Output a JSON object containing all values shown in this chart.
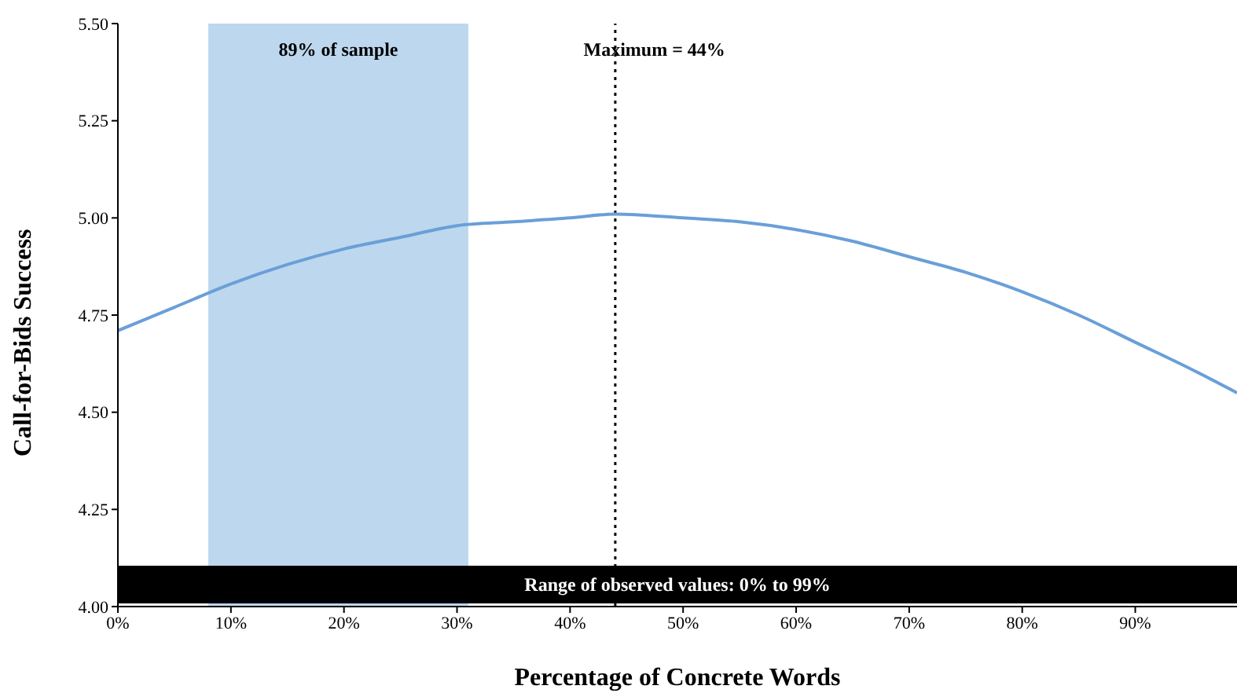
{
  "chart_data": {
    "type": "line",
    "xlabel": "Percentage of Concrete Words",
    "ylabel": "Call-for-Bids Success",
    "x": [
      0,
      5,
      10,
      15,
      20,
      25,
      30,
      35,
      40,
      44,
      50,
      55,
      60,
      65,
      70,
      75,
      80,
      85,
      90,
      95,
      99
    ],
    "series": [
      {
        "color": "#6a9fd8",
        "values": [
          4.71,
          4.77,
          4.83,
          4.88,
          4.92,
          4.95,
          4.98,
          4.99,
          5.0,
          5.01,
          5.0,
          4.99,
          4.97,
          4.94,
          4.9,
          4.86,
          4.81,
          4.75,
          4.68,
          4.61,
          4.55
        ]
      }
    ],
    "xlim": [
      0,
      99
    ],
    "xticks": [
      {
        "value": 0,
        "label": "0%"
      },
      {
        "value": 10,
        "label": "10%"
      },
      {
        "value": 20,
        "label": "20%"
      },
      {
        "value": 30,
        "label": "30%"
      },
      {
        "value": 40,
        "label": "40%"
      },
      {
        "value": 50,
        "label": "50%"
      },
      {
        "value": 60,
        "label": "60%"
      },
      {
        "value": 70,
        "label": "70%"
      },
      {
        "value": 80,
        "label": "80%"
      },
      {
        "value": 90,
        "label": "90%"
      }
    ],
    "ylim": [
      4.0,
      5.5
    ],
    "yticks": [
      {
        "value": 4.0,
        "label": "4.00"
      },
      {
        "value": 4.25,
        "label": "4.25"
      },
      {
        "value": 4.5,
        "label": "4.50"
      },
      {
        "value": 4.75,
        "label": "4.75"
      },
      {
        "value": 5.0,
        "label": "5.00"
      },
      {
        "value": 5.25,
        "label": "5.25"
      },
      {
        "value": 5.5,
        "label": "5.50"
      }
    ],
    "bands": [
      {
        "axis": "x",
        "from": 8,
        "to": 31,
        "label": "89% of sample",
        "color": "#bdd7ee"
      }
    ],
    "ref_lines": [
      {
        "axis": "x",
        "value": 44,
        "label": "Maximum = 44%",
        "color": "#000000",
        "line_style": "dotted"
      }
    ],
    "annotations": [
      "Range of observed values: 0% to 99%"
    ],
    "marker": "none",
    "line_style": "solid",
    "grid": false,
    "legend": false
  }
}
